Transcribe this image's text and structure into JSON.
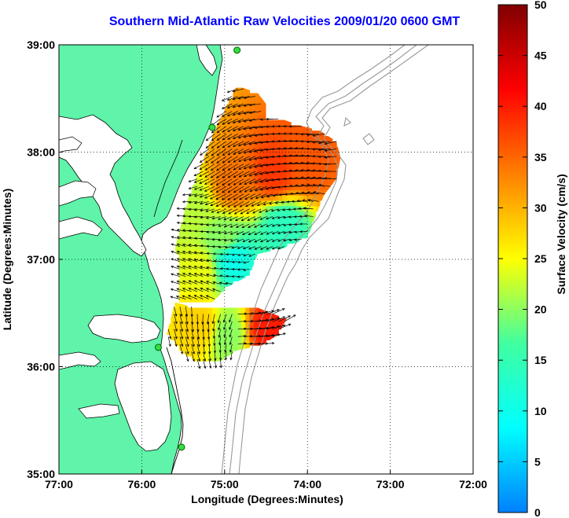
{
  "title": "Southern Mid-Atlantic Raw Velocities 2009/01/20 0600 GMT",
  "map": {
    "x_axis_label": "Longitude (Degrees:Minutes)",
    "y_axis_label": "Latitude (Degrees:Minutes)",
    "lon_range": [
      -77,
      -72
    ],
    "lat_range": [
      35,
      39
    ],
    "lon_ticks": [
      {
        "value": -77,
        "label": "77:00"
      },
      {
        "value": -76,
        "label": "76:00"
      },
      {
        "value": -75,
        "label": "75:00"
      },
      {
        "value": -74,
        "label": "74:00"
      },
      {
        "value": -73,
        "label": "73:00"
      },
      {
        "value": -72,
        "label": "72:00"
      }
    ],
    "lat_ticks": [
      {
        "value": 35,
        "label": "35:00"
      },
      {
        "value": 36,
        "label": "36:00"
      },
      {
        "value": 37,
        "label": "37:00"
      },
      {
        "value": 38,
        "label": "38:00"
      },
      {
        "value": 39,
        "label": "39:00"
      }
    ],
    "land_color": "#5ff4a9",
    "bathymetry_color": "#999999",
    "grid": "dotted"
  },
  "colorbar": {
    "label": "Surface Velocity (cm/s)",
    "min": 0,
    "max": 50,
    "ticks": [
      {
        "value": 0,
        "label": "0"
      },
      {
        "value": 5,
        "label": "5"
      },
      {
        "value": 10,
        "label": "10"
      },
      {
        "value": 15,
        "label": "15"
      },
      {
        "value": 20,
        "label": "20"
      },
      {
        "value": 25,
        "label": "25"
      },
      {
        "value": 30,
        "label": "30"
      },
      {
        "value": 35,
        "label": "35"
      },
      {
        "value": 40,
        "label": "40"
      },
      {
        "value": 45,
        "label": "45"
      },
      {
        "value": 50,
        "label": "50"
      }
    ],
    "stops": [
      "#0080ff",
      "#00ffff",
      "#40ffa0",
      "#ffff00",
      "#ff8000",
      "#ff0000",
      "#800000"
    ]
  },
  "velocity_field": {
    "description_lon_lat_speed": [
      {
        "lon": -75.4,
        "lat": 37.5,
        "speed": 22
      },
      {
        "lon": -74.9,
        "lat": 37.7,
        "speed": 34
      },
      {
        "lon": -74.4,
        "lat": 37.8,
        "speed": 38
      },
      {
        "lon": -74.0,
        "lat": 37.9,
        "speed": 36
      },
      {
        "lon": -74.3,
        "lat": 37.3,
        "speed": 14
      },
      {
        "lon": -75.0,
        "lat": 37.2,
        "speed": 20
      },
      {
        "lon": -75.3,
        "lat": 36.9,
        "speed": 24
      },
      {
        "lon": -74.9,
        "lat": 37.0,
        "speed": 10
      },
      {
        "lon": -75.3,
        "lat": 36.4,
        "speed": 28
      },
      {
        "lon": -74.5,
        "lat": 36.35,
        "speed": 40
      },
      {
        "lon": -74.95,
        "lat": 36.3,
        "speed": 20
      }
    ]
  },
  "stations": [
    {
      "lon": -74.85,
      "lat": 38.95
    },
    {
      "lon": -75.15,
      "lat": 38.23
    },
    {
      "lon": -75.8,
      "lat": 36.18
    },
    {
      "lon": -75.52,
      "lat": 35.25
    }
  ]
}
